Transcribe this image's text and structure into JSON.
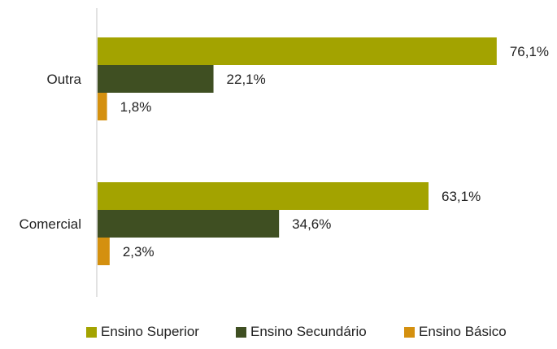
{
  "chart_data": {
    "type": "bar",
    "orientation": "horizontal",
    "title": "",
    "xlabel": "",
    "ylabel": "",
    "categories": [
      "Outra",
      "Comercial"
    ],
    "series": [
      {
        "name": "Ensino Superior",
        "color": "#a3a300",
        "values": [
          76.1,
          63.1
        ],
        "labels": [
          "76,1%",
          "63,1%"
        ]
      },
      {
        "name": "Ensino Secundário",
        "color": "#3f4f22",
        "values": [
          22.1,
          34.6
        ],
        "labels": [
          "22,1%",
          "34,6%"
        ]
      },
      {
        "name": "Ensino Básico",
        "color": "#d4900f",
        "values": [
          1.8,
          2.3
        ],
        "labels": [
          "1,8%",
          "2,3%"
        ]
      }
    ],
    "xlim": [
      0,
      100
    ],
    "grid": false,
    "legend_position": "bottom"
  }
}
